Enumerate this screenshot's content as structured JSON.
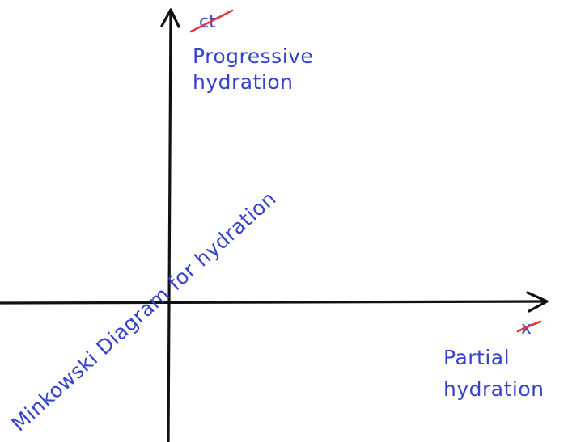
{
  "diagram": {
    "title": "Minkowski Diagram for hydration",
    "y_axis": {
      "struck_label": "ct",
      "label_lines": [
        "Progressive",
        "hydration"
      ]
    },
    "x_axis": {
      "struck_label": "x",
      "label_lines": [
        "Partial",
        "hydration"
      ]
    },
    "colors": {
      "axis": "#111111",
      "text": "#3443c9",
      "strike": "#e0383e"
    }
  }
}
